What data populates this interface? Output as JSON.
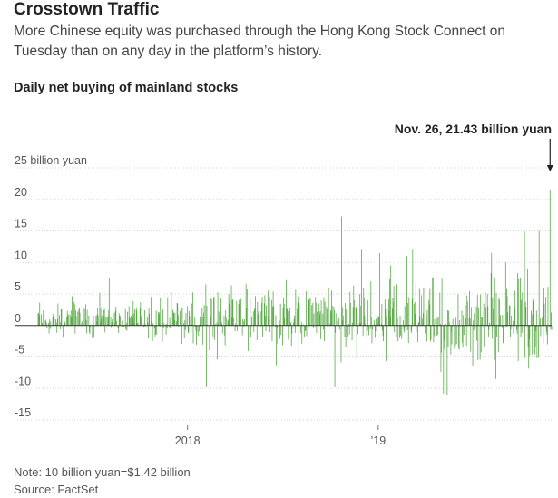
{
  "header": {
    "title": "Crosstown Traffic",
    "subtitle": "More Chinese equity was purchased through the Hong Kong Stock Connect on Tuesday than on any day in the platform’s history."
  },
  "footer": {
    "note": "Note: 10 billion yuan=$1.42 billion",
    "source": "Source: FactSet"
  },
  "chart_data": {
    "type": "bar",
    "title": "Daily net buying of mainland stocks",
    "xlabel": "",
    "ylabel": "",
    "ylim": [
      -15,
      25
    ],
    "y_ticks": [
      {
        "value": 25,
        "label": "25 billion yuan"
      },
      {
        "value": 20,
        "label": "20"
      },
      {
        "value": 15,
        "label": "15"
      },
      {
        "value": 10,
        "label": "10"
      },
      {
        "value": 5,
        "label": "5"
      },
      {
        "value": 0,
        "label": "0"
      },
      {
        "value": -5,
        "label": "-5"
      },
      {
        "value": -10,
        "label": "-10"
      },
      {
        "value": -15,
        "label": "-15"
      }
    ],
    "x_ticks": [
      {
        "x": "2018-01-01",
        "label": "2018"
      },
      {
        "x": "2019-01-01",
        "label": "’19"
      }
    ],
    "x_range": [
      "2017-03-21",
      "2019-11-29"
    ],
    "grid": true,
    "bar_color": "#5aab48",
    "annotation": {
      "x": "2019-11-26",
      "y": 21.43,
      "text": "Nov. 26, 21.43 billion yuan"
    },
    "highlighted_points": [
      {
        "x": "2017-08-04",
        "y": 7.5
      },
      {
        "x": "2018-02-06",
        "y": -9.8
      },
      {
        "x": "2018-07-09",
        "y": 7.2
      },
      {
        "x": "2018-10-10",
        "y": -9.8
      },
      {
        "x": "2018-10-23",
        "y": 17.3
      },
      {
        "x": "2018-11-30",
        "y": 12.0
      },
      {
        "x": "2019-01-04",
        "y": 11.5
      },
      {
        "x": "2019-02-25",
        "y": 11.0
      },
      {
        "x": "2019-03-08",
        "y": 12.0
      },
      {
        "x": "2019-05-06",
        "y": -10.8
      },
      {
        "x": "2019-05-13",
        "y": -11.0
      },
      {
        "x": "2019-08-06",
        "y": 11.5
      },
      {
        "x": "2019-09-02",
        "y": 10.0
      },
      {
        "x": "2019-10-08",
        "y": 15.0
      },
      {
        "x": "2019-11-05",
        "y": 15.0
      },
      {
        "x": "2019-11-26",
        "y": 21.43
      }
    ]
  }
}
